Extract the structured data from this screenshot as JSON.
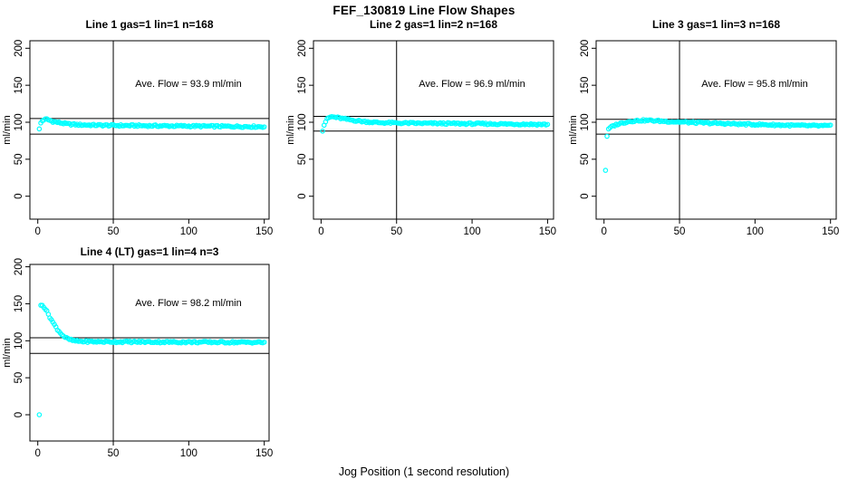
{
  "figure": {
    "title": "FEF_130819  Line Flow Shapes",
    "xlabel": "Jog Position (1 second resolution)",
    "ylabel": "ml/min",
    "point_color": "#00FFFF",
    "axis_color": "#000000",
    "background": "#FFFFFF"
  },
  "chart_data": [
    {
      "type": "scatter",
      "title": "Line 1 gas=1 lin=1 n=168",
      "annotation": "Ave. Flow =  93.9  ml/min",
      "ave_flow_ml_min": 93.9,
      "line": 1,
      "gas": 1,
      "lin": 1,
      "n": 168,
      "ylabel": "ml/min",
      "x_ticks": [
        0,
        50,
        100,
        150
      ],
      "y_ticks": [
        0,
        50,
        100,
        150,
        200
      ],
      "xlim": [
        -5,
        153
      ],
      "ylim": [
        -31,
        210
      ],
      "v_ref_line": 50,
      "h_ref_lines": [
        105,
        84
      ],
      "marker": "open-circle",
      "x_range_plotted": [
        1,
        150
      ],
      "series_anchors": [
        [
          1,
          91
        ],
        [
          2,
          99
        ],
        [
          3,
          102
        ],
        [
          4,
          103.5
        ],
        [
          6,
          104
        ],
        [
          8,
          102.5
        ],
        [
          10,
          101
        ],
        [
          14,
          99.5
        ],
        [
          20,
          97.5
        ],
        [
          28,
          96.5
        ],
        [
          40,
          96
        ],
        [
          60,
          95.5
        ],
        [
          90,
          95
        ],
        [
          120,
          94.5
        ],
        [
          150,
          94
        ]
      ]
    },
    {
      "type": "scatter",
      "title": "Line 2 gas=1 lin=2 n=168",
      "annotation": "Ave. Flow =  96.9  ml/min",
      "ave_flow_ml_min": 96.9,
      "line": 2,
      "gas": 1,
      "lin": 2,
      "n": 168,
      "ylabel": "ml/min",
      "x_ticks": [
        0,
        50,
        100,
        150
      ],
      "y_ticks": [
        0,
        50,
        100,
        150,
        200
      ],
      "xlim": [
        -5,
        153
      ],
      "ylim": [
        -31,
        210
      ],
      "v_ref_line": 50,
      "h_ref_lines": [
        108,
        88
      ],
      "marker": "open-circle",
      "x_range_plotted": [
        1,
        150
      ],
      "series_anchors": [
        [
          1,
          88
        ],
        [
          2,
          96
        ],
        [
          3,
          101
        ],
        [
          4,
          104
        ],
        [
          5,
          106
        ],
        [
          7,
          107.5
        ],
        [
          10,
          106.5
        ],
        [
          14,
          105
        ],
        [
          20,
          103
        ],
        [
          28,
          101
        ],
        [
          38,
          99.5
        ],
        [
          50,
          99
        ],
        [
          70,
          98.5
        ],
        [
          100,
          98
        ],
        [
          130,
          97.5
        ],
        [
          150,
          97
        ]
      ]
    },
    {
      "type": "scatter",
      "title": "Line 3 gas=1 lin=3 n=168",
      "annotation": "Ave. Flow =  95.8  ml/min",
      "ave_flow_ml_min": 95.8,
      "line": 3,
      "gas": 1,
      "lin": 3,
      "n": 168,
      "ylabel": "ml/min",
      "x_ticks": [
        0,
        50,
        100,
        150
      ],
      "y_ticks": [
        0,
        50,
        100,
        150,
        200
      ],
      "xlim": [
        -5,
        153
      ],
      "ylim": [
        -31,
        210
      ],
      "v_ref_line": 50,
      "h_ref_lines": [
        104,
        84
      ],
      "marker": "open-circle",
      "x_range_plotted": [
        1,
        150
      ],
      "series_anchors": [
        [
          1,
          35
        ],
        [
          2,
          81
        ],
        [
          3,
          90
        ],
        [
          4,
          92.5
        ],
        [
          6,
          95
        ],
        [
          9,
          97.5
        ],
        [
          13,
          99.5
        ],
        [
          18,
          101.5
        ],
        [
          24,
          102.5
        ],
        [
          30,
          102.5
        ],
        [
          38,
          101.5
        ],
        [
          48,
          100.5
        ],
        [
          60,
          99.5
        ],
        [
          75,
          98.5
        ],
        [
          90,
          97.5
        ],
        [
          110,
          96.5
        ],
        [
          130,
          95.5
        ],
        [
          150,
          95
        ]
      ]
    },
    {
      "type": "scatter",
      "title": "Line 4 (LT) gas=1 lin=4 n=3",
      "annotation": "Ave. Flow =  98.2  ml/min",
      "ave_flow_ml_min": 98.2,
      "line": 4,
      "gas": 1,
      "lin": 4,
      "n": 3,
      "ylabel": "ml/min",
      "x_ticks": [
        0,
        50,
        100,
        150
      ],
      "y_ticks": [
        0,
        50,
        100,
        150,
        200
      ],
      "xlim": [
        -5,
        153
      ],
      "ylim": [
        -31,
        210
      ],
      "v_ref_line": 50,
      "h_ref_lines": [
        104,
        83
      ],
      "marker": "open-circle",
      "x_range_plotted": [
        1,
        150
      ],
      "series_anchors": [
        [
          1,
          0
        ],
        [
          2,
          148
        ],
        [
          3,
          149
        ],
        [
          4,
          146
        ],
        [
          5,
          143
        ],
        [
          6,
          139.5
        ],
        [
          7,
          136
        ],
        [
          8,
          132
        ],
        [
          9,
          128.5
        ],
        [
          10,
          125
        ],
        [
          11,
          121.5
        ],
        [
          12,
          118.5
        ],
        [
          13,
          115.5
        ],
        [
          14,
          113
        ],
        [
          15,
          110.5
        ],
        [
          16,
          108.5
        ],
        [
          17,
          106.5
        ],
        [
          18,
          105
        ],
        [
          19,
          103.5
        ],
        [
          20,
          102.5
        ],
        [
          22,
          101
        ],
        [
          24,
          100
        ],
        [
          26,
          99.5
        ],
        [
          30,
          99
        ],
        [
          40,
          98.7
        ],
        [
          60,
          98.5
        ],
        [
          90,
          98.2
        ],
        [
          120,
          98
        ],
        [
          150,
          97.8
        ]
      ]
    }
  ]
}
